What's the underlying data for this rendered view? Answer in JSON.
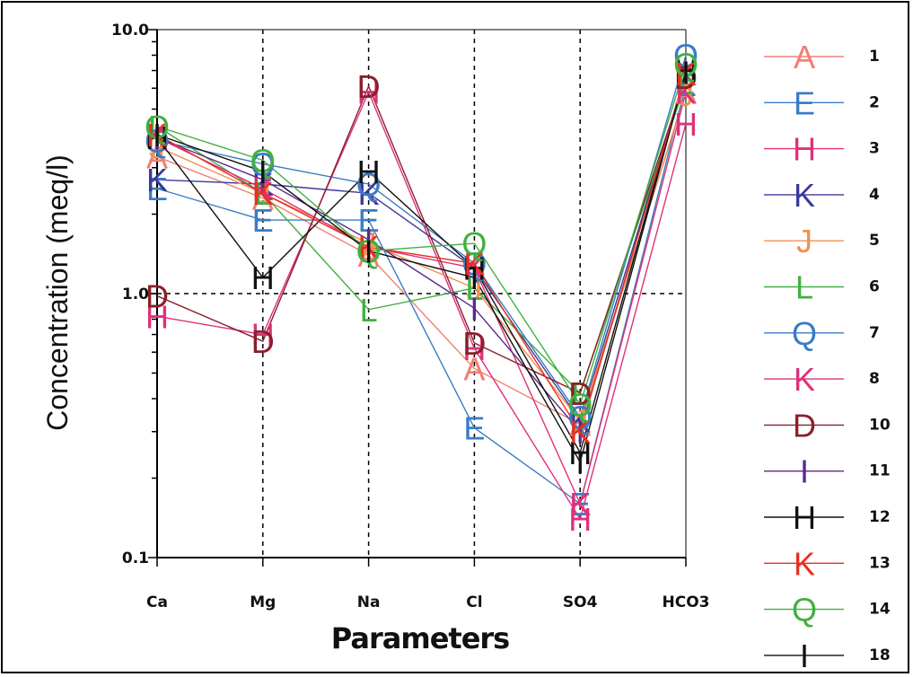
{
  "chart_data": {
    "type": "line",
    "ylabel": "Concentration (meq/l)",
    "xlabel": "Parameters",
    "yscale": "log",
    "ylim": [
      0.1,
      10.0
    ],
    "ytick_labels": [
      "0.1",
      "1.0",
      "10.0"
    ],
    "yticks": [
      0.1,
      1.0,
      10.0
    ],
    "categories": [
      "Ca",
      "Mg",
      "Na",
      "Cl",
      "SO4",
      "HCO3"
    ],
    "grid": "dashed",
    "legend_position": "right",
    "series": [
      {
        "name": "1",
        "marker": "A",
        "color": "#f08070",
        "values": [
          3.3,
          2.3,
          1.4,
          0.52,
          0.32,
          5.8
        ]
      },
      {
        "name": "2",
        "marker": "E",
        "color": "#3a7cc4",
        "values": [
          2.5,
          1.9,
          1.9,
          0.31,
          0.16,
          6.2
        ]
      },
      {
        "name": "3",
        "marker": "H",
        "color": "#e0307a",
        "values": [
          0.82,
          0.7,
          5.8,
          0.62,
          0.14,
          4.4
        ]
      },
      {
        "name": "4",
        "marker": "K",
        "color": "#3a3a9a",
        "values": [
          2.7,
          2.6,
          2.4,
          1.25,
          0.33,
          6.8
        ]
      },
      {
        "name": "5",
        "marker": "J",
        "color": "#f09050",
        "values": [
          3.6,
          2.4,
          1.55,
          1.05,
          0.33,
          5.7
        ]
      },
      {
        "name": "6",
        "marker": "L",
        "color": "#40b040",
        "values": [
          4.3,
          2.4,
          0.87,
          1.05,
          0.42,
          6.3
        ]
      },
      {
        "name": "7",
        "marker": "Q",
        "color": "#3a7cc4",
        "values": [
          3.8,
          3.1,
          2.6,
          1.3,
          0.34,
          8.0
        ]
      },
      {
        "name": "8",
        "marker": "K",
        "color": "#e0307a",
        "values": [
          3.9,
          2.5,
          1.5,
          1.25,
          0.16,
          5.8
        ]
      },
      {
        "name": "10",
        "marker": "D",
        "color": "#8a1f2a",
        "values": [
          0.98,
          0.66,
          6.1,
          0.65,
          0.42,
          6.6
        ]
      },
      {
        "name": "11",
        "marker": "I",
        "color": "#5a2a8a",
        "values": [
          3.9,
          2.7,
          1.6,
          0.88,
          0.3,
          6.9
        ]
      },
      {
        "name": "12",
        "marker": "H",
        "color": "#111111",
        "values": [
          3.9,
          1.15,
          2.9,
          1.25,
          0.25,
          7.0
        ]
      },
      {
        "name": "13",
        "marker": "K",
        "color": "#e83020",
        "values": [
          4.0,
          2.4,
          1.5,
          1.3,
          0.3,
          6.8
        ]
      },
      {
        "name": "14",
        "marker": "Q",
        "color": "#40b040",
        "values": [
          4.3,
          3.2,
          1.45,
          1.55,
          0.38,
          7.4
        ]
      },
      {
        "name": "18",
        "marker": "I",
        "color": "#111111",
        "values": [
          4.0,
          2.9,
          1.45,
          1.15,
          0.23,
          6.9
        ]
      }
    ]
  }
}
